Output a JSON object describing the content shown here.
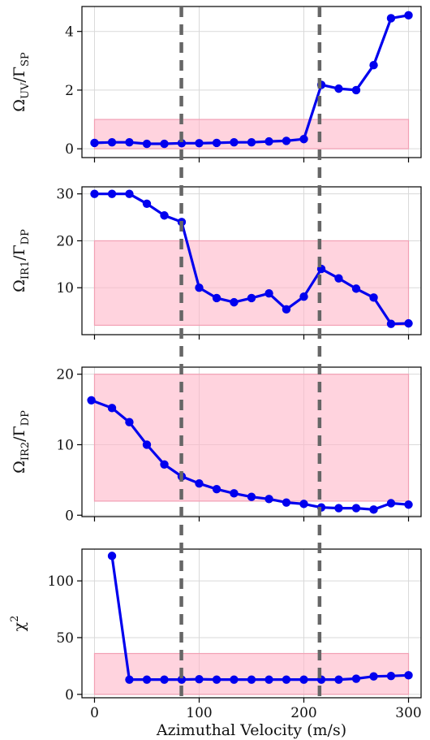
{
  "colors": {
    "line": "#0000ee",
    "band": "#ffb6c8",
    "band_edge": "#f2a0b4",
    "vline": "#666666",
    "grid": "#d9d9d9"
  },
  "chart_data": [
    {
      "type": "line",
      "ylabel": "Ω_UV / Γ_SP",
      "ylabel_parts": {
        "main": "Ω",
        "sub1": "UV",
        "slash": "/Γ",
        "sub2": "SP"
      },
      "x": [
        0,
        16.7,
        33.3,
        50,
        66.7,
        83.3,
        100,
        116.7,
        133.3,
        150,
        166.7,
        183.3,
        200,
        216.7,
        233.3,
        250,
        266.7,
        283.3,
        300
      ],
      "values": [
        0.2,
        0.22,
        0.22,
        0.17,
        0.17,
        0.19,
        0.19,
        0.2,
        0.22,
        0.22,
        0.25,
        0.27,
        0.33,
        2.18,
        2.05,
        2.0,
        2.85,
        4.45,
        4.55
      ],
      "band": [
        0,
        1.0
      ],
      "ylim": [
        -0.3,
        4.85
      ],
      "yticks": [
        0,
        2,
        4
      ],
      "grid": true
    },
    {
      "type": "line",
      "ylabel": "Ω_IR1 / Γ_DP",
      "ylabel_parts": {
        "main": "Ω",
        "sub1": "IR1",
        "slash": "/Γ",
        "sub2": "DP"
      },
      "x": [
        0,
        16.7,
        33.3,
        50,
        66.7,
        83.3,
        100,
        116.7,
        133.3,
        150,
        166.7,
        183.3,
        200,
        216.7,
        233.3,
        250,
        266.7,
        283.3,
        300
      ],
      "values": [
        30,
        30,
        30,
        27.9,
        25.4,
        24.0,
        10.0,
        7.8,
        6.9,
        7.8,
        8.8,
        5.4,
        8.1,
        14.0,
        12.0,
        9.8,
        7.9,
        2.3,
        2.4
      ],
      "band": [
        2,
        20
      ],
      "ylim": [
        0,
        31.5
      ],
      "yticks": [
        10,
        20,
        30
      ],
      "grid": true
    },
    {
      "type": "line",
      "ylabel": "Ω_IR2 / Γ_DP",
      "ylabel_parts": {
        "main": "Ω",
        "sub1": "IR2",
        "slash": "/Γ",
        "sub2": "DP"
      },
      "x": [
        -3,
        16.7,
        33.3,
        50,
        66.7,
        83.3,
        100,
        116.7,
        133.3,
        150,
        166.7,
        183.3,
        200,
        216.7,
        233.3,
        250,
        266.7,
        283.3,
        300
      ],
      "values": [
        16.3,
        15.2,
        13.2,
        10.0,
        7.2,
        5.5,
        4.5,
        3.7,
        3.1,
        2.6,
        2.3,
        1.8,
        1.6,
        1.1,
        1.0,
        1.0,
        0.8,
        1.7,
        1.5
      ],
      "band": [
        2,
        20
      ],
      "ylim": [
        -0.2,
        21.0
      ],
      "yticks": [
        0,
        10,
        20
      ],
      "grid": true
    },
    {
      "type": "line",
      "ylabel": "χ²",
      "ylabel_parts": {
        "main": "χ",
        "sup": "2"
      },
      "x": [
        16.7,
        33.3,
        50,
        66.7,
        83.3,
        100,
        116.7,
        133.3,
        150,
        166.7,
        183.3,
        200,
        216.7,
        233.3,
        250,
        266.7,
        283.3,
        300
      ],
      "values": [
        122,
        13.0,
        13.0,
        13.0,
        13.0,
        13.3,
        13.0,
        13.0,
        13.0,
        13.0,
        13.0,
        13.0,
        13.0,
        13.0,
        13.8,
        15.8,
        16.2,
        16.8
      ],
      "band": [
        0,
        36
      ],
      "ylim": [
        -3,
        128
      ],
      "yticks": [
        0,
        50,
        100
      ],
      "xlabel": "Azimuthal Velocity (m/s)",
      "xticks": [
        0,
        100,
        200,
        300
      ],
      "grid": true
    }
  ],
  "shared": {
    "xlim": [
      -12,
      312
    ],
    "vlines": [
      83,
      215
    ]
  }
}
